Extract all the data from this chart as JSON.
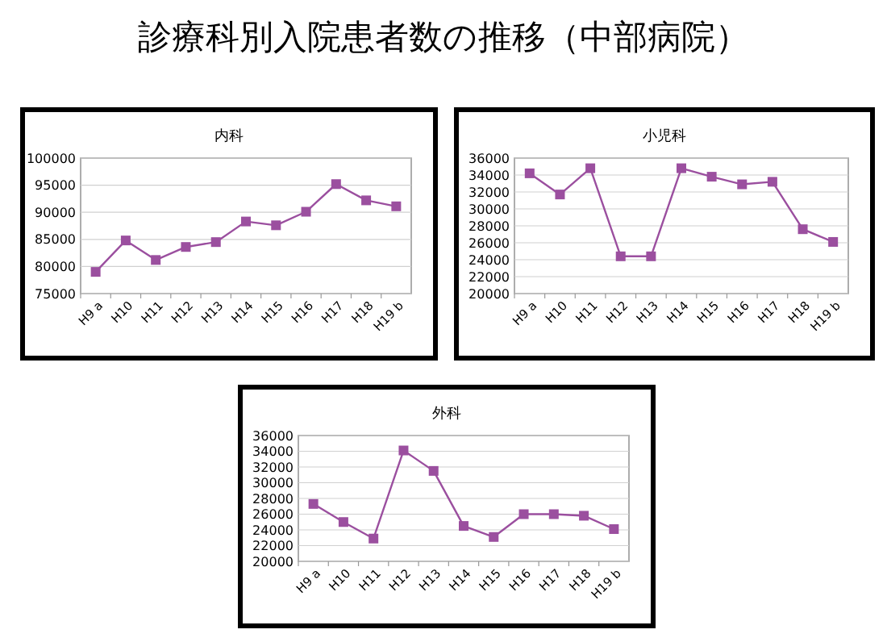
{
  "chart_data": [
    {
      "type": "other",
      "title": "診療科別入院患者数の推移（中部病院）"
    },
    {
      "type": "line",
      "title": "内科",
      "categories": [
        "H9 a",
        "H10",
        "H11",
        "H12",
        "H13",
        "H14",
        "H15",
        "H16",
        "H17",
        "H18",
        "H19 b"
      ],
      "series": [
        {
          "color": "#9b4f9f",
          "values": [
            79000,
            84800,
            81200,
            83600,
            84500,
            88300,
            87600,
            90100,
            95200,
            92200,
            91100
          ]
        }
      ],
      "ylim": [
        75000,
        100000
      ],
      "yticks": [
        75000,
        80000,
        85000,
        90000,
        95000,
        100000
      ],
      "grid": "y",
      "marker": "square"
    },
    {
      "type": "line",
      "title": "小児科",
      "categories": [
        "H9 a",
        "H10",
        "H11",
        "H12",
        "H13",
        "H14",
        "H15",
        "H16",
        "H17",
        "H18",
        "H19 b"
      ],
      "series": [
        {
          "color": "#9b4f9f",
          "values": [
            34200,
            31700,
            34800,
            24400,
            24400,
            34800,
            33800,
            32900,
            33200,
            27600,
            26100
          ]
        }
      ],
      "ylim": [
        20000,
        36000
      ],
      "yticks": [
        20000,
        22000,
        24000,
        26000,
        28000,
        30000,
        32000,
        34000,
        36000
      ],
      "grid": "y",
      "marker": "square"
    },
    {
      "type": "line",
      "title": "外科",
      "categories": [
        "H9 a",
        "H10",
        "H11",
        "H12",
        "H13",
        "H14",
        "H15",
        "H16",
        "H17",
        "H18",
        "H19 b"
      ],
      "series": [
        {
          "color": "#9b4f9f",
          "values": [
            27300,
            25000,
            22900,
            34100,
            31500,
            24500,
            23100,
            26000,
            26000,
            25800,
            24100
          ]
        }
      ],
      "ylim": [
        20000,
        36000
      ],
      "yticks": [
        20000,
        22000,
        24000,
        26000,
        28000,
        30000,
        32000,
        34000,
        36000
      ],
      "grid": "y",
      "marker": "square"
    }
  ]
}
